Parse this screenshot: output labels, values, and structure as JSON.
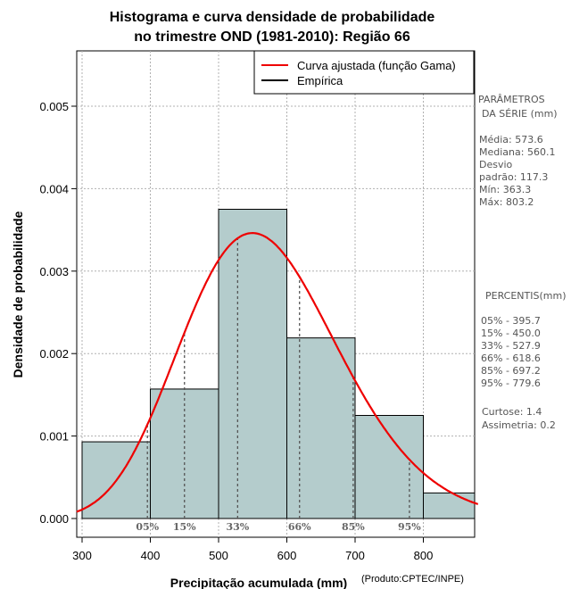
{
  "chart_data": {
    "type": "bar",
    "title_line1": "Histograma e curva densidade de probabilidade",
    "title_line2": "no trimestre OND (1981-2010): Região 66",
    "xlabel": "Precipitação acumulada (mm)",
    "ylabel": "Densidade de probabilidade",
    "credit": "(Produto:CPTEC/INPE)",
    "xlim": [
      292,
      880
    ],
    "ylim": [
      0,
      0.0057
    ],
    "x_ticks": [
      300,
      400,
      500,
      600,
      700,
      800
    ],
    "x_tick_labels": [
      "300",
      "400",
      "500",
      "600",
      "700",
      "800"
    ],
    "y_ticks": [
      0.0,
      0.001,
      0.002,
      0.003,
      0.004,
      0.005
    ],
    "y_tick_labels": [
      "0.000",
      "0.001",
      "0.002",
      "0.003",
      "0.004",
      "0.005"
    ],
    "grid": true,
    "histogram": {
      "name": "Empírica",
      "bins": [
        {
          "from": 300,
          "to": 400,
          "density": 0.00093
        },
        {
          "from": 400,
          "to": 500,
          "density": 0.00157
        },
        {
          "from": 500,
          "to": 600,
          "density": 0.00375
        },
        {
          "from": 600,
          "to": 700,
          "density": 0.00219
        },
        {
          "from": 700,
          "to": 800,
          "density": 0.00125
        },
        {
          "from": 800,
          "to": 900,
          "density": 0.00031
        }
      ],
      "fill_color": "#b4cccc",
      "edge_color": "#000000"
    },
    "curve": {
      "name": "Curva ajustada (função Gama)",
      "distribution": "gamma",
      "mean": 573.6,
      "sd": 117.3,
      "color": "#ee0000"
    },
    "percentiles": [
      {
        "label": "05%",
        "value": 395.7
      },
      {
        "label": "15%",
        "value": 450.0
      },
      {
        "label": "33%",
        "value": 527.9
      },
      {
        "label": "66%",
        "value": 618.6
      },
      {
        "label": "85%",
        "value": 697.2
      },
      {
        "label": "95%",
        "value": 779.6
      }
    ],
    "legend": {
      "position": "top-right",
      "entries": [
        {
          "label": "Curva ajustada (função Gama)",
          "color": "#ee0000"
        },
        {
          "label": "Empírica",
          "color": "#000000"
        }
      ]
    }
  },
  "side_panel": {
    "params_title_1": "PARÂMETROS",
    "params_title_2": "DA SÉRIE (mm)",
    "params": [
      "Média:  573.6",
      "Mediana:  560.1",
      "Desvio",
      "padrão:  117.3",
      "Mín:  363.3",
      "Máx:  803.2"
    ],
    "percentis_title": "PERCENTIS(mm)",
    "percentis": [
      "05% -   395.7",
      "15% -   450.0",
      "33% -   527.9",
      "66% -   618.6",
      "85% -   697.2",
      "95% -   779.6"
    ],
    "stats": [
      "Curtose:  1.4",
      "Assimetria:  0.2"
    ]
  }
}
